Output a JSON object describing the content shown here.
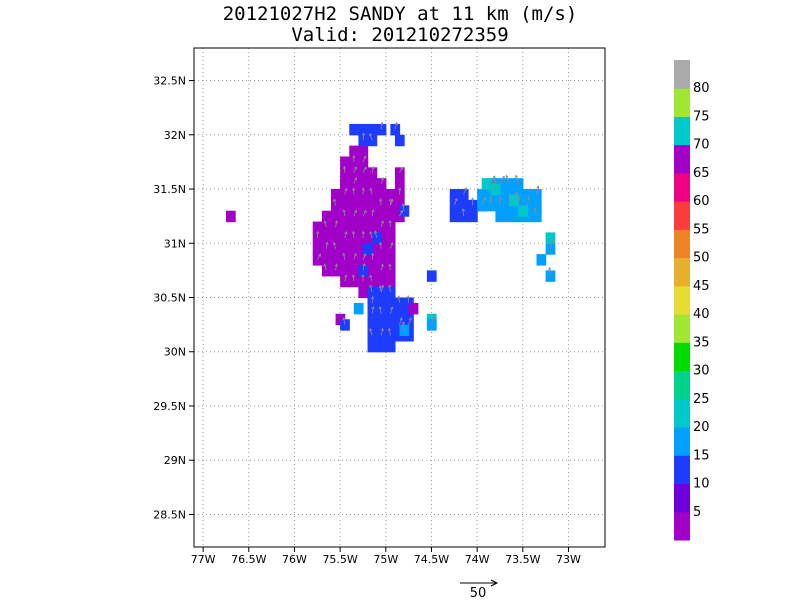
{
  "chart_data": {
    "type": "heatmap",
    "title_line1": "20121027H2 SANDY at 11 km (m/s)",
    "title_line2": "Valid: 201210272359",
    "xlim": [
      -77.1,
      -72.6
    ],
    "ylim": [
      28.2,
      32.8
    ],
    "x_ticks": [
      -77,
      -76.5,
      -76,
      -75.5,
      -75,
      -74.5,
      -74,
      -73.5,
      -73
    ],
    "x_tick_labels": [
      "77W",
      "76.5W",
      "76W",
      "75.5W",
      "75W",
      "74.5W",
      "74W",
      "73.5W",
      "73W"
    ],
    "y_ticks": [
      28.5,
      29,
      29.5,
      30,
      30.5,
      31,
      31.5,
      32,
      32.5
    ],
    "y_tick_labels": [
      "28.5N",
      "29N",
      "29.5N",
      "30N",
      "30.5N",
      "31N",
      "31.5N",
      "32N",
      "32.5N"
    ],
    "grid": true,
    "colorbar": {
      "labels": [
        "5",
        "10",
        "15",
        "20",
        "25",
        "30",
        "35",
        "40",
        "45",
        "50",
        "55",
        "60",
        "65",
        "70",
        "75",
        "80"
      ],
      "colors": [
        "#a000c8",
        "#6e00dc",
        "#1e3cff",
        "#00a0ff",
        "#00c8c8",
        "#00d28c",
        "#00dc00",
        "#a0e632",
        "#e6dc32",
        "#e6af2d",
        "#f08228",
        "#fa3c3c",
        "#f00082",
        "#a000c8",
        "#00c8c8",
        "#a0e632",
        "#aaaaaa"
      ]
    },
    "reference_vector": {
      "label": "50",
      "speed": 50
    },
    "cell_size": 0.1,
    "regions": [
      {
        "name": "main",
        "value": 8,
        "color": "#a000c8",
        "lon": [
          -75.8,
          -75.45,
          -75.2,
          -75.0,
          -74.85,
          -74.9,
          -75.0,
          -75.2,
          -75.35,
          -75.6,
          -75.8,
          -75.8
        ],
        "lat": [
          31.15,
          31.6,
          31.8,
          31.55,
          31.2,
          30.85,
          30.45,
          30.45,
          30.6,
          30.7,
          30.9,
          31.15
        ]
      },
      {
        "name": "upper-arm",
        "value": 8,
        "color": "#a000c8",
        "lon": [
          -75.55,
          -75.4,
          -75.2,
          -75.2,
          -75.35,
          -75.55
        ],
        "lat": [
          31.55,
          31.95,
          31.95,
          31.75,
          31.5,
          31.55
        ]
      },
      {
        "name": "upper-right-arm",
        "value": 8,
        "color": "#a000c8",
        "lon": [
          -75.0,
          -74.8,
          -74.75,
          -74.85,
          -75.0
        ],
        "lat": [
          31.35,
          31.85,
          31.6,
          31.2,
          31.35
        ]
      },
      {
        "name": "top-blue",
        "value": 12,
        "color": "#1e3cff",
        "lon": [
          -75.4,
          -75.2,
          -75.05,
          -75.15,
          -75.35,
          -75.4
        ],
        "lat": [
          32.05,
          32.15,
          32.05,
          31.85,
          31.95,
          32.05
        ]
      },
      {
        "name": "south-blue",
        "value": 13,
        "color": "#1e3cff",
        "lon": [
          -75.2,
          -74.95,
          -74.7,
          -74.7,
          -74.9,
          -75.2,
          -75.2
        ],
        "lat": [
          30.6,
          30.6,
          30.45,
          30.15,
          30.05,
          30.05,
          30.6
        ]
      },
      {
        "name": "east-blue",
        "value": 14,
        "color": "#1e3cff",
        "lon": [
          -74.3,
          -74.1,
          -73.95,
          -74.0,
          -74.3,
          -74.3
        ],
        "lat": [
          31.5,
          31.45,
          31.35,
          31.25,
          31.25,
          31.5
        ]
      },
      {
        "name": "east-cyan",
        "value": 22,
        "color": "#00a0ff",
        "lon": [
          -73.95,
          -73.7,
          -73.35,
          -73.3,
          -73.5,
          -73.95,
          -73.95
        ],
        "lat": [
          31.55,
          31.6,
          31.5,
          31.2,
          31.15,
          31.3,
          31.55
        ]
      }
    ],
    "cells": [
      {
        "lon": -76.7,
        "lat": 31.25,
        "value": 8,
        "color": "#a000c8"
      },
      {
        "lon": -75.1,
        "lat": 31.05,
        "value": 12,
        "color": "#1e3cff"
      },
      {
        "lon": -75.2,
        "lat": 30.95,
        "value": 12,
        "color": "#1e3cff"
      },
      {
        "lon": -75.25,
        "lat": 30.75,
        "value": 12,
        "color": "#1e3cff"
      },
      {
        "lon": -74.5,
        "lat": 30.7,
        "value": 12,
        "color": "#1e3cff"
      },
      {
        "lon": -74.8,
        "lat": 31.3,
        "value": 12,
        "color": "#1e3cff"
      },
      {
        "lon": -74.85,
        "lat": 31.95,
        "value": 12,
        "color": "#1e3cff"
      },
      {
        "lon": -74.9,
        "lat": 32.05,
        "value": 12,
        "color": "#1e3cff"
      },
      {
        "lon": -75.5,
        "lat": 30.3,
        "value": 8,
        "color": "#a000c8"
      },
      {
        "lon": -75.45,
        "lat": 30.25,
        "value": 12,
        "color": "#1e3cff"
      },
      {
        "lon": -74.5,
        "lat": 30.3,
        "value": 22,
        "color": "#00c8c8"
      },
      {
        "lon": -74.5,
        "lat": 30.25,
        "value": 20,
        "color": "#00a0ff"
      },
      {
        "lon": -75.3,
        "lat": 30.4,
        "value": 20,
        "color": "#00a0ff"
      },
      {
        "lon": -74.8,
        "lat": 30.2,
        "value": 20,
        "color": "#00a0ff"
      },
      {
        "lon": -74.7,
        "lat": 30.4,
        "value": 8,
        "color": "#a000c8"
      },
      {
        "lon": -73.2,
        "lat": 30.95,
        "value": 20,
        "color": "#00a0ff"
      },
      {
        "lon": -73.3,
        "lat": 30.85,
        "value": 20,
        "color": "#00a0ff"
      },
      {
        "lon": -73.2,
        "lat": 30.7,
        "value": 20,
        "color": "#00a0ff"
      },
      {
        "lon": -73.2,
        "lat": 31.05,
        "value": 22,
        "color": "#00c8c8"
      },
      {
        "lon": -73.6,
        "lat": 31.4,
        "value": 24,
        "color": "#00c8c8"
      },
      {
        "lon": -73.5,
        "lat": 31.3,
        "value": 24,
        "color": "#00c8c8"
      },
      {
        "lon": -73.8,
        "lat": 31.5,
        "value": 24,
        "color": "#00c8c8"
      },
      {
        "lon": -73.9,
        "lat": 31.55,
        "value": 24,
        "color": "#00c8c8"
      }
    ]
  }
}
